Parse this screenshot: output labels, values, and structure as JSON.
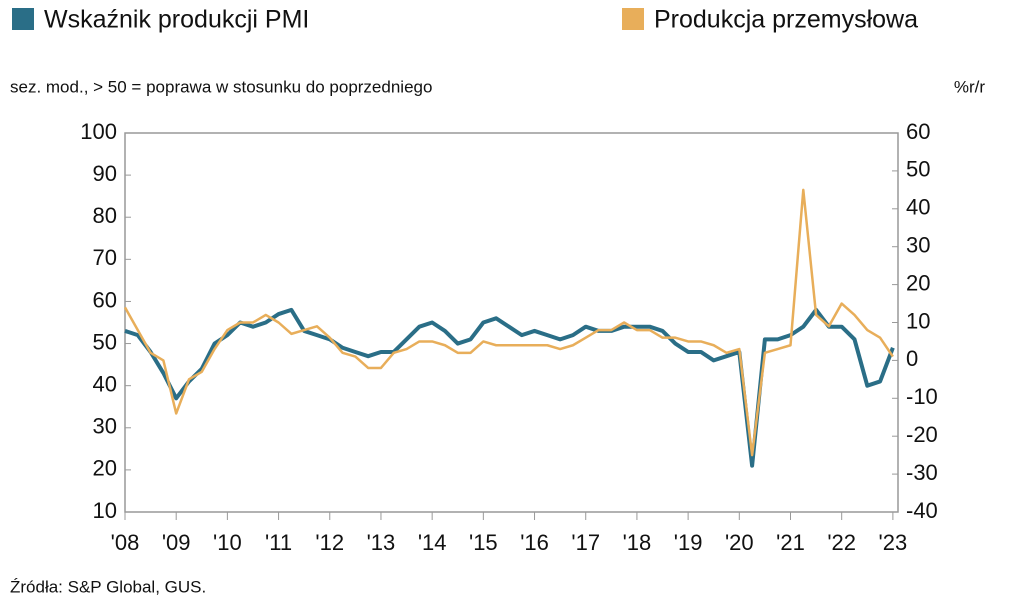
{
  "chart_data": {
    "type": "line",
    "ylabel": "sez. mod., > 50 = poprawa w stosunku do poprzedniego",
    "y2label": "%r/r",
    "source": "Źródła:  S&P Global, GUS.",
    "x": [
      2008,
      2008.25,
      2008.5,
      2008.75,
      2009,
      2009.25,
      2009.5,
      2009.75,
      2010,
      2010.25,
      2010.5,
      2010.75,
      2011,
      2011.25,
      2011.5,
      2011.75,
      2012,
      2012.25,
      2012.5,
      2012.75,
      2013,
      2013.25,
      2013.5,
      2013.75,
      2014,
      2014.25,
      2014.5,
      2014.75,
      2015,
      2015.25,
      2015.5,
      2015.75,
      2016,
      2016.25,
      2016.5,
      2016.75,
      2017,
      2017.25,
      2017.5,
      2017.75,
      2018,
      2018.25,
      2018.5,
      2018.75,
      2019,
      2019.25,
      2019.5,
      2019.75,
      2020,
      2020.25,
      2020.5,
      2020.75,
      2021,
      2021.25,
      2021.5,
      2021.75,
      2022,
      2022.25,
      2022.5,
      2022.75,
      2023
    ],
    "series": [
      {
        "name": "Wskaźnik produkcji PMI",
        "color": "#2a6e87",
        "axis": "y",
        "values": [
          53,
          52,
          48,
          43,
          37,
          41,
          44,
          50,
          52,
          55,
          54,
          55,
          57,
          58,
          53,
          52,
          51,
          49,
          48,
          47,
          48,
          48,
          51,
          54,
          55,
          53,
          50,
          51,
          55,
          56,
          54,
          52,
          53,
          52,
          51,
          52,
          54,
          53,
          53,
          54,
          54,
          54,
          53,
          50,
          48,
          48,
          46,
          47,
          48,
          21,
          51,
          51,
          52,
          54,
          58,
          54,
          54,
          51,
          40,
          41,
          49
        ]
      },
      {
        "name": "Produkcja przemysłowa",
        "color": "#e8ae5a",
        "axis": "y2",
        "values": [
          14,
          8,
          2,
          0,
          -14,
          -5,
          -3,
          3,
          8,
          10,
          10,
          12,
          10,
          7,
          8,
          9,
          6,
          2,
          1,
          -2,
          -2,
          2,
          3,
          5,
          5,
          4,
          2,
          2,
          5,
          4,
          4,
          4,
          4,
          4,
          3,
          4,
          6,
          8,
          8,
          10,
          8,
          8,
          6,
          6,
          5,
          5,
          4,
          2,
          3,
          -25,
          2,
          3,
          4,
          45,
          12,
          9,
          15,
          12,
          8,
          6,
          1
        ]
      }
    ],
    "xlim": [
      2008,
      2023.1
    ],
    "xticks": [
      {
        "value": 2008,
        "label": "'08"
      },
      {
        "value": 2009,
        "label": "'09"
      },
      {
        "value": 2010,
        "label": "'10"
      },
      {
        "value": 2011,
        "label": "'11"
      },
      {
        "value": 2012,
        "label": "'12"
      },
      {
        "value": 2013,
        "label": "'13"
      },
      {
        "value": 2014,
        "label": "'14"
      },
      {
        "value": 2015,
        "label": "'15"
      },
      {
        "value": 2016,
        "label": "'16"
      },
      {
        "value": 2017,
        "label": "'17"
      },
      {
        "value": 2018,
        "label": "'18"
      },
      {
        "value": 2019,
        "label": "'19"
      },
      {
        "value": 2020,
        "label": "'20"
      },
      {
        "value": 2021,
        "label": "'21"
      },
      {
        "value": 2022,
        "label": "'22"
      },
      {
        "value": 2023,
        "label": "'23"
      }
    ],
    "ylim": [
      10,
      100
    ],
    "yticks": [
      10,
      20,
      30,
      40,
      50,
      60,
      70,
      80,
      90,
      100
    ],
    "y2lim": [
      -40,
      60
    ],
    "y2ticks": [
      -40,
      -30,
      -20,
      -10,
      0,
      10,
      20,
      30,
      40,
      50,
      60
    ],
    "legend": "top"
  }
}
